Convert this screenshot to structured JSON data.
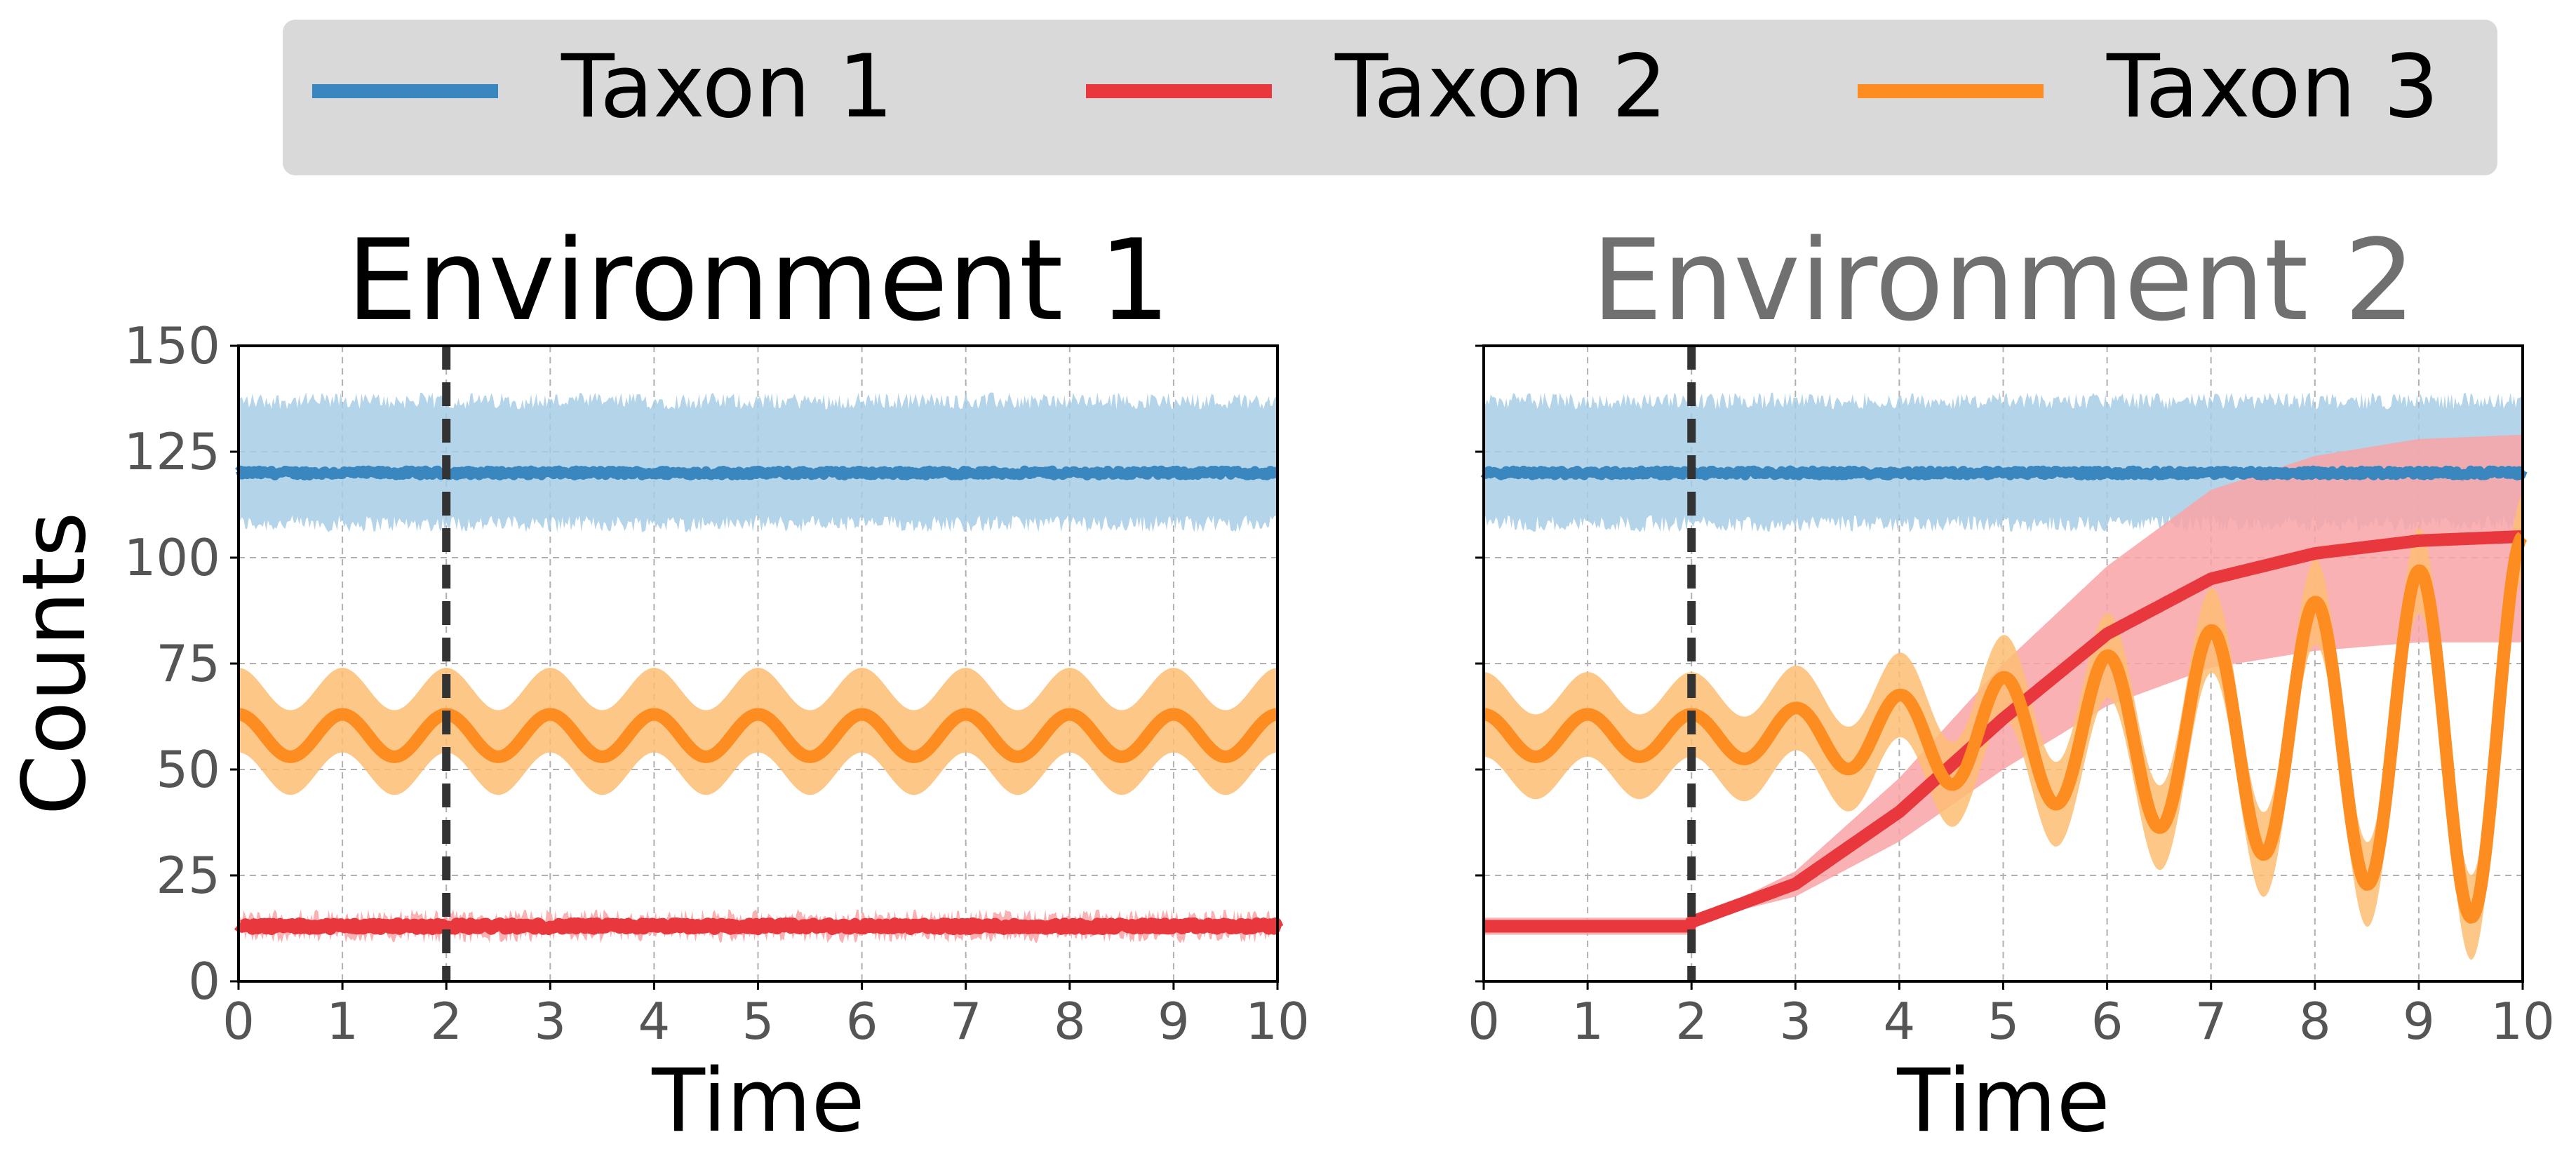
{
  "legend": {
    "items": [
      {
        "label": "Taxon 1",
        "color": "#3a87c0"
      },
      {
        "label": "Taxon 2",
        "color": "#e8383d"
      },
      {
        "label": "Taxon 3",
        "color": "#fd8d21"
      }
    ]
  },
  "colors": {
    "taxon1_line": "#3a87c0",
    "taxon1_band": "#a6cde5",
    "taxon2_line": "#e8383d",
    "taxon2_band": "#f9a3a6",
    "taxon3_line": "#fd8d21",
    "taxon3_band": "#fdbd73",
    "marker": "#333333",
    "title_env1": "#000000",
    "title_env2": "#707070",
    "legend_bg": "#d9d9d9",
    "grid": "#b0b0b0",
    "tick_label": "#555555"
  },
  "chart_data": [
    {
      "type": "line",
      "title": "Environment 1",
      "xlabel": "Time",
      "ylabel": "Counts",
      "xlim": [
        0,
        10
      ],
      "ylim": [
        0,
        150
      ],
      "xticks": [
        "0",
        "1",
        "2",
        "3",
        "4",
        "5",
        "6",
        "7",
        "8",
        "9",
        "10"
      ],
      "yticks": [
        "0",
        "25",
        "50",
        "75",
        "100",
        "125",
        "150"
      ],
      "grid": true,
      "intervention_time": 2,
      "series": [
        {
          "name": "Taxon 1",
          "kind": "constant",
          "mean": 120,
          "band": [
            108,
            137
          ]
        },
        {
          "name": "Taxon 2",
          "kind": "constant",
          "mean": 13,
          "band": [
            11,
            15
          ]
        },
        {
          "name": "Taxon 3",
          "kind": "oscillation",
          "mean": 58,
          "amplitude": 5,
          "period": 1.0,
          "band_half_width": 11
        }
      ]
    },
    {
      "type": "line",
      "title": "Environment 2",
      "xlabel": "Time",
      "ylabel": "",
      "xlim": [
        0,
        10
      ],
      "ylim": [
        0,
        150
      ],
      "xticks": [
        "0",
        "1",
        "2",
        "3",
        "4",
        "5",
        "6",
        "7",
        "8",
        "9",
        "10"
      ],
      "yticks": [],
      "grid": true,
      "intervention_time": 2,
      "series": [
        {
          "name": "Taxon 1",
          "kind": "constant",
          "mean": 120,
          "band": [
            108,
            137
          ]
        },
        {
          "name": "Taxon 2",
          "kind": "logistic",
          "x": [
            2,
            3,
            4,
            5,
            6,
            7,
            8,
            9,
            10
          ],
          "y": [
            14,
            23,
            40,
            62,
            82,
            95,
            101,
            104,
            105
          ],
          "band_low": [
            14,
            20,
            33,
            50,
            65,
            74,
            78,
            80,
            80
          ],
          "band_high": [
            14,
            26,
            48,
            75,
            98,
            116,
            124,
            128,
            129
          ],
          "pre_value": 13
        },
        {
          "name": "Taxon 3",
          "kind": "growing-oscillation",
          "mean": 58,
          "amplitude_start": 5,
          "amplitude_end": 47,
          "period": 1.0,
          "band_half_width": 10
        }
      ]
    }
  ]
}
